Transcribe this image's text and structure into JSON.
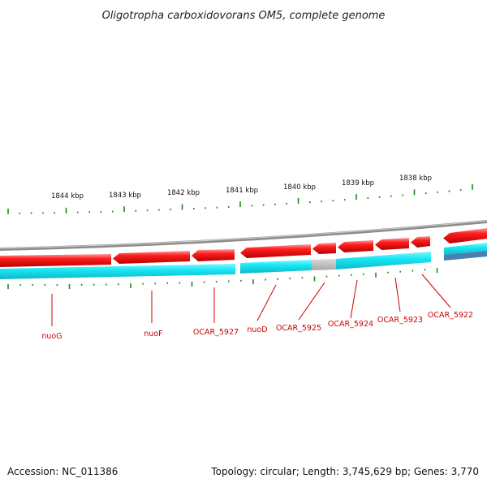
{
  "title": "Oligotropha carboxidovorans OM5, complete genome",
  "kbp_labels": [
    "1844 kbp",
    "1843 kbp",
    "1842 kbp",
    "1841 kbp",
    "1840 kbp",
    "1839 kbp",
    "1838 kbp"
  ],
  "gene_labels": [
    "nuoG",
    "nuoF",
    "OCAR_5927",
    "nuoD",
    "OCAR_5925",
    "OCAR_5924",
    "OCAR_5923",
    "OCAR_5922"
  ],
  "footer": {
    "accession": "Accession: NC_011386",
    "topology": "Topology: circular; Length: 3,745,629 bp; Genes: 3,770"
  },
  "colors": {
    "gene_forward": "#e8151f",
    "gene_reverse": "#e8151f",
    "cds_track": "#19e3ef",
    "rna_gray": "#bdbdbd",
    "backbone": "#9a9a9a",
    "tick": "#1c8a1c",
    "label": "#cc0000"
  }
}
